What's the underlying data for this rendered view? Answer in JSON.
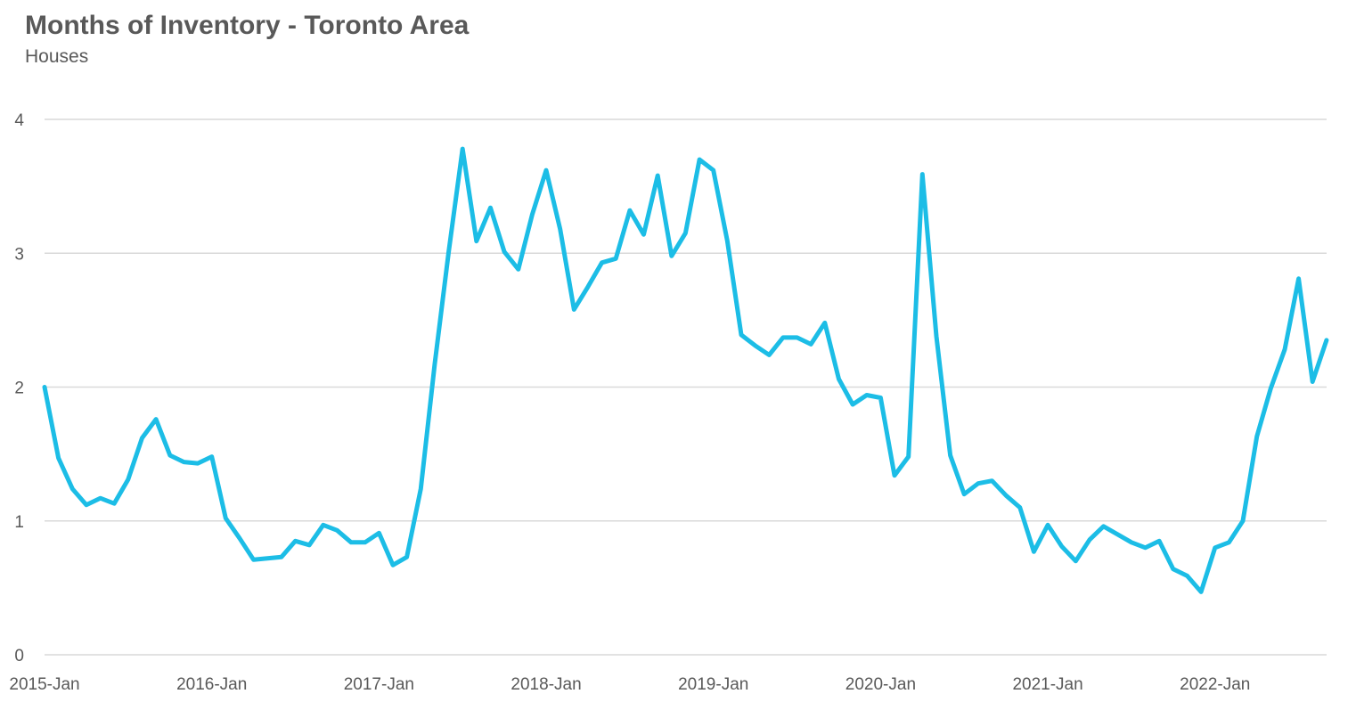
{
  "chart_data": {
    "type": "line",
    "title": "Months of Inventory - Toronto Area",
    "subtitle": "Houses",
    "xlabel": "",
    "ylabel": "",
    "ylim": [
      0,
      4
    ],
    "yticks": [
      0,
      1,
      2,
      3,
      4
    ],
    "x_tick_labels": [
      "2015-Jan",
      "2016-Jan",
      "2017-Jan",
      "2018-Jan",
      "2019-Jan",
      "2020-Jan",
      "2021-Jan",
      "2022-Jan"
    ],
    "x_start": "2015-Jan",
    "x_end": "2022-Aug",
    "grid": true,
    "legend": "none",
    "color": "#1cbde6",
    "series": [
      {
        "values": [
          2.0,
          1.47,
          1.24,
          1.12,
          1.17,
          1.13,
          1.31,
          1.62,
          1.76,
          1.49,
          1.44,
          1.43,
          1.48,
          1.02,
          0.87,
          0.71,
          0.72,
          0.73,
          0.85,
          0.82,
          0.97,
          0.93,
          0.84,
          0.84,
          0.91,
          0.67,
          0.73,
          1.24,
          2.17,
          3.01,
          3.78,
          3.09,
          3.34,
          3.01,
          2.88,
          3.29,
          3.62,
          3.18,
          2.58,
          2.75,
          2.93,
          2.96,
          3.32,
          3.14,
          3.58,
          2.98,
          3.15,
          3.7,
          3.62,
          3.09,
          2.39,
          2.31,
          2.24,
          2.37,
          2.37,
          2.32,
          2.48,
          2.06,
          1.87,
          1.94,
          1.92,
          1.34,
          1.48,
          3.59,
          2.38,
          1.49,
          1.2,
          1.28,
          1.3,
          1.19,
          1.1,
          0.77,
          0.97,
          0.81,
          0.7,
          0.86,
          0.96,
          0.9,
          0.84,
          0.8,
          0.85,
          0.64,
          0.59,
          0.47,
          0.8,
          0.84,
          1.0,
          1.63,
          1.99,
          2.28,
          2.81,
          2.04,
          2.35
        ]
      }
    ]
  }
}
